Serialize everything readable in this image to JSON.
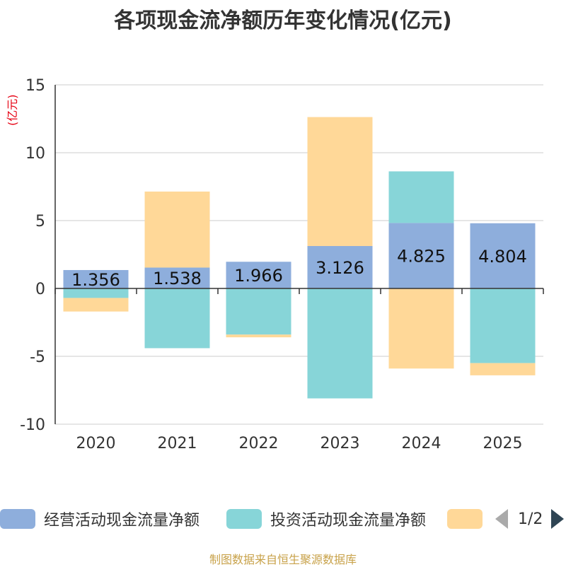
{
  "chart_data": {
    "type": "bar",
    "stacked": true,
    "title": "各项现金流净额历年变化情况(亿元)",
    "ylabel": "(亿元)",
    "categories": [
      "2020",
      "2021",
      "2022",
      "2023",
      "2024",
      "2025"
    ],
    "ylim": [
      -10,
      15
    ],
    "yticks": [
      -10,
      -5,
      0,
      5,
      10,
      15
    ],
    "series": [
      {
        "name": "经营活动现金流量净额",
        "color": "#8eaedc",
        "values": [
          1.356,
          1.538,
          1.966,
          3.126,
          4.825,
          4.804
        ],
        "labels": [
          "1.356",
          "1.538",
          "1.966",
          "3.126",
          "4.825",
          "4.804"
        ]
      },
      {
        "name": "投资活动现金流量净额",
        "color": "#87d5d8",
        "values": [
          -0.7,
          -4.4,
          -3.4,
          -8.1,
          3.8,
          -5.5
        ]
      },
      {
        "name": "",
        "color": "#ffd898",
        "values": [
          -1.0,
          5.6,
          -0.2,
          9.5,
          -5.9,
          -0.9
        ]
      }
    ],
    "grid": true,
    "legend_position": "bottom"
  },
  "legend": {
    "items": [
      {
        "label": "经营活动现金流量净额",
        "color": "#8eaedc"
      },
      {
        "label": "投资活动现金流量净额",
        "color": "#87d5d8"
      },
      {
        "label": "",
        "color": "#ffd898"
      }
    ],
    "page": "1/2"
  },
  "source": "制图数据来自恒生聚源数据库"
}
